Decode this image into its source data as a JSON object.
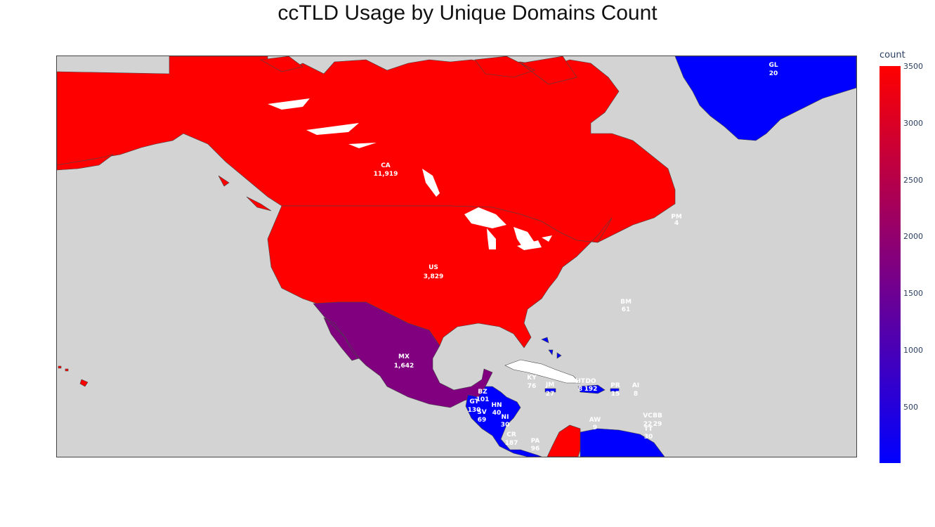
{
  "title": "ccTLD Usage by Unique Domains Count",
  "colorbar": {
    "title": "count",
    "ticks": [
      "3500",
      "3000",
      "2500",
      "2000",
      "1500",
      "1000",
      "500"
    ],
    "tick_values": [
      3500,
      3000,
      2500,
      2000,
      1500,
      1000,
      500
    ],
    "range": [
      4,
      3500
    ],
    "colorscale": [
      "#0000ff",
      "#800080",
      "#ff0000"
    ]
  },
  "chart_data": {
    "type": "choropleth",
    "title": "ccTLD Usage by Unique Domains Count",
    "colorbar_title": "count",
    "colorbar_range": [
      4,
      3500
    ],
    "colors": {
      "land": "#ff0000",
      "ocean": "#d3d3d3",
      "lakes": "#ffffff",
      "no_data": "#ffffff"
    },
    "regions": [
      {
        "code": "GL",
        "count": "20"
      },
      {
        "code": "CA",
        "count": "11,919"
      },
      {
        "code": "PM",
        "count": "4"
      },
      {
        "code": "US",
        "count": "3,829"
      },
      {
        "code": "BM",
        "count": "61"
      },
      {
        "code": "MX",
        "count": "1,642"
      },
      {
        "code": "KY",
        "count": "76"
      },
      {
        "code": "BZ",
        "count": "101"
      },
      {
        "code": "GT",
        "count": "130"
      },
      {
        "code": "SV",
        "count": "69"
      },
      {
        "code": "HN",
        "count": "40"
      },
      {
        "code": "NI",
        "count": "30"
      },
      {
        "code": "CR",
        "count": "187"
      },
      {
        "code": "PA",
        "count": "96"
      },
      {
        "code": "JM",
        "count": "27"
      },
      {
        "code": "HT",
        "count": "8"
      },
      {
        "code": "DO",
        "count": "192"
      },
      {
        "code": "PR",
        "count": "15"
      },
      {
        "code": "AI",
        "count": "8"
      },
      {
        "code": "AW",
        "count": "9"
      },
      {
        "code": "BB",
        "count": "29"
      },
      {
        "code": "VC",
        "count": "22"
      },
      {
        "code": "TT",
        "count": "30"
      }
    ]
  }
}
